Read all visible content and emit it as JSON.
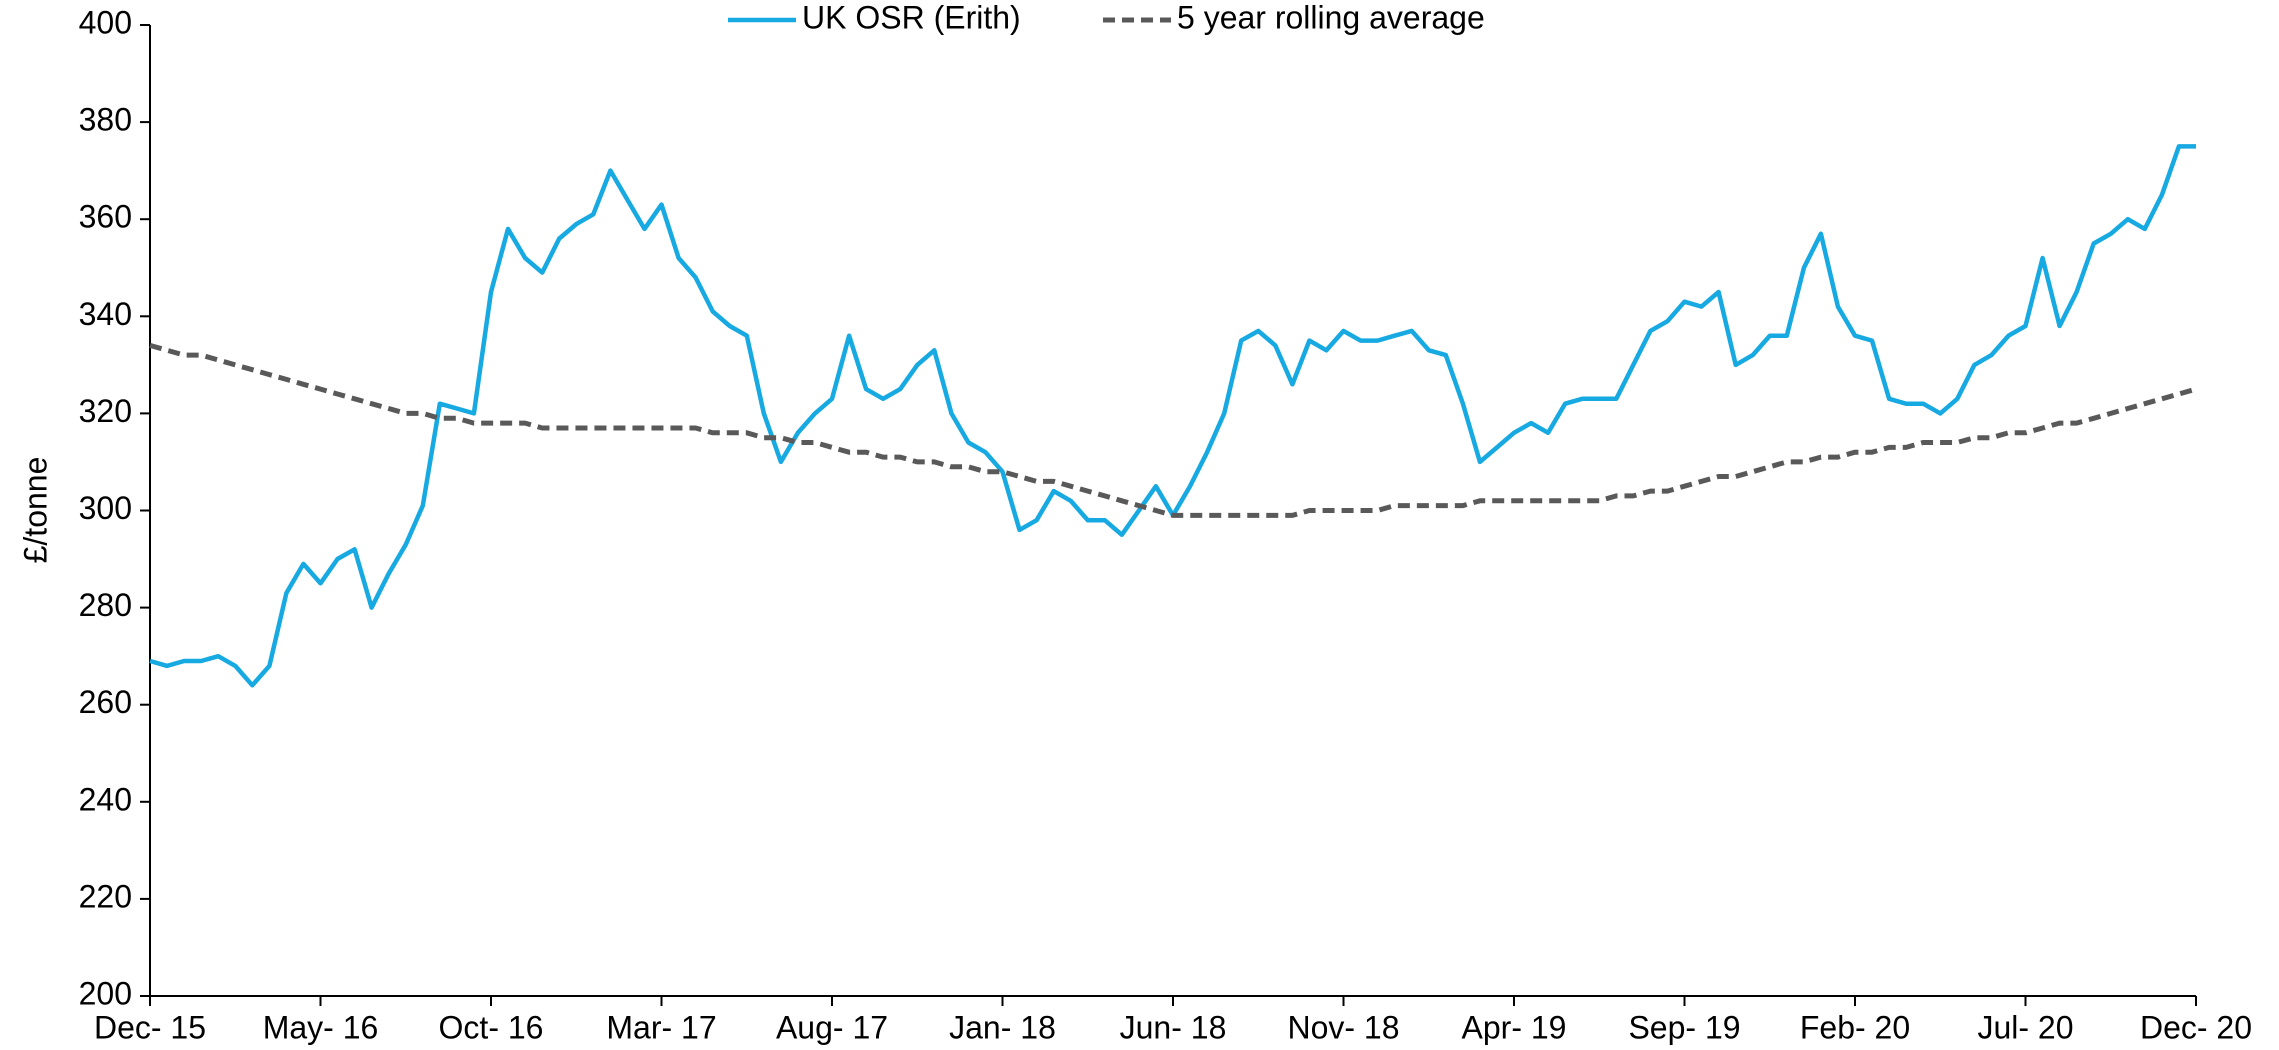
{
  "chart_data": {
    "type": "line",
    "y_label": "£/tonne",
    "legend": "top",
    "categories": [
      "Dec- 15",
      null,
      null,
      null,
      null,
      null,
      null,
      null,
      null,
      null,
      "May- 16",
      null,
      null,
      null,
      null,
      null,
      null,
      null,
      null,
      null,
      "Oct- 16",
      null,
      null,
      null,
      null,
      null,
      null,
      null,
      null,
      null,
      "Mar- 17",
      null,
      null,
      null,
      null,
      null,
      null,
      null,
      null,
      null,
      "Aug- 17",
      null,
      null,
      null,
      null,
      null,
      null,
      null,
      null,
      null,
      "Jan- 18",
      null,
      null,
      null,
      null,
      null,
      null,
      null,
      null,
      null,
      "Jun- 18",
      null,
      null,
      null,
      null,
      null,
      null,
      null,
      null,
      null,
      "Nov- 18",
      null,
      null,
      null,
      null,
      null,
      null,
      null,
      null,
      null,
      "Apr- 19",
      null,
      null,
      null,
      null,
      null,
      null,
      null,
      null,
      null,
      "Sep- 19",
      null,
      null,
      null,
      null,
      null,
      null,
      null,
      null,
      null,
      "Feb- 20",
      null,
      null,
      null,
      null,
      null,
      null,
      null,
      null,
      null,
      "Jul- 20",
      null,
      null,
      null,
      null,
      null,
      null,
      null,
      null,
      null,
      "Dec- 20"
    ],
    "series": [
      {
        "name": "UK OSR (Erith)",
        "color": "#17a9e1",
        "dash": false,
        "values": [
          269,
          268,
          269,
          269,
          270,
          268,
          264,
          268,
          283,
          289,
          285,
          290,
          292,
          280,
          287,
          293,
          301,
          322,
          321,
          320,
          345,
          358,
          352,
          349,
          356,
          359,
          361,
          370,
          364,
          358,
          363,
          352,
          348,
          341,
          338,
          336,
          320,
          310,
          316,
          320,
          323,
          336,
          325,
          323,
          325,
          330,
          333,
          320,
          314,
          312,
          308,
          296,
          298,
          304,
          302,
          298,
          298,
          295,
          300,
          305,
          299,
          305,
          312,
          320,
          335,
          337,
          334,
          326,
          335,
          333,
          337,
          335,
          335,
          336,
          337,
          333,
          332,
          322,
          310,
          313,
          316,
          318,
          316,
          322,
          323,
          323,
          323,
          330,
          337,
          339,
          343,
          342,
          345,
          330,
          332,
          336,
          336,
          350,
          357,
          342,
          336,
          335,
          323,
          322,
          322,
          320,
          323,
          330,
          332,
          336,
          338,
          352,
          338,
          345,
          355,
          357,
          360,
          358,
          365,
          375,
          375
        ]
      },
      {
        "name": "5 year rolling average",
        "color": "#595959",
        "dash": true,
        "values": [
          334,
          333,
          332,
          332,
          331,
          330,
          329,
          328,
          327,
          326,
          325,
          324,
          323,
          322,
          321,
          320,
          320,
          319,
          319,
          318,
          318,
          318,
          318,
          317,
          317,
          317,
          317,
          317,
          317,
          317,
          317,
          317,
          317,
          316,
          316,
          316,
          315,
          315,
          314,
          314,
          313,
          312,
          312,
          311,
          311,
          310,
          310,
          309,
          309,
          308,
          308,
          307,
          306,
          306,
          305,
          304,
          303,
          302,
          301,
          300,
          299,
          299,
          299,
          299,
          299,
          299,
          299,
          299,
          300,
          300,
          300,
          300,
          300,
          301,
          301,
          301,
          301,
          301,
          302,
          302,
          302,
          302,
          302,
          302,
          302,
          302,
          303,
          303,
          304,
          304,
          305,
          306,
          307,
          307,
          308,
          309,
          310,
          310,
          311,
          311,
          312,
          312,
          313,
          313,
          314,
          314,
          314,
          315,
          315,
          316,
          316,
          317,
          318,
          318,
          319,
          320,
          321,
          322,
          323,
          324,
          325
        ]
      }
    ],
    "ylim": [
      200,
      400
    ],
    "yticks": [
      200,
      220,
      240,
      260,
      280,
      300,
      320,
      340,
      360,
      380,
      400
    ],
    "grid": false
  }
}
